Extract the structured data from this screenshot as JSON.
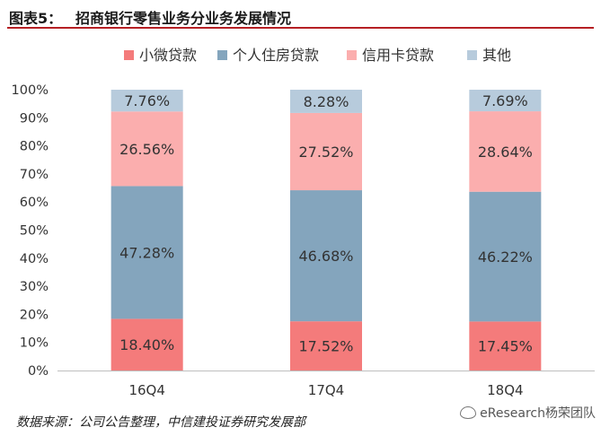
{
  "header": {
    "figure_label": "图表5：",
    "title": "招商银行零售业务分业务发展情况"
  },
  "chart_data": {
    "type": "bar",
    "stacked": true,
    "categories": [
      "16Q4",
      "17Q4",
      "18Q4"
    ],
    "series": [
      {
        "name": "小微贷款",
        "color": "#f47b7b",
        "values": [
          18.4,
          17.52,
          17.45
        ],
        "labels": [
          "18.40%",
          "17.52%",
          "17.45%"
        ]
      },
      {
        "name": "个人住房贷款",
        "color": "#84a5bd",
        "values": [
          47.28,
          46.68,
          46.22
        ],
        "labels": [
          "47.28%",
          "46.68%",
          "46.22%"
        ]
      },
      {
        "name": "信用卡贷款",
        "color": "#fbaeae",
        "values": [
          26.56,
          27.52,
          28.64
        ],
        "labels": [
          "26.56%",
          "27.52%",
          "28.64%"
        ]
      },
      {
        "name": "其他",
        "color": "#b7cbdc",
        "values": [
          7.76,
          8.28,
          7.69
        ],
        "labels": [
          "7.76%",
          "8.28%",
          "7.69%"
        ]
      }
    ],
    "y_ticks": [
      "0%",
      "10%",
      "20%",
      "30%",
      "40%",
      "50%",
      "60%",
      "70%",
      "80%",
      "90%",
      "100%"
    ],
    "ylim": [
      0,
      100
    ],
    "legend_position": "top",
    "grid": false
  },
  "footer": {
    "source": "数据来源：公司公告整理，中信建投证券研究发展部",
    "watermark": "eResearch杨荣团队"
  }
}
